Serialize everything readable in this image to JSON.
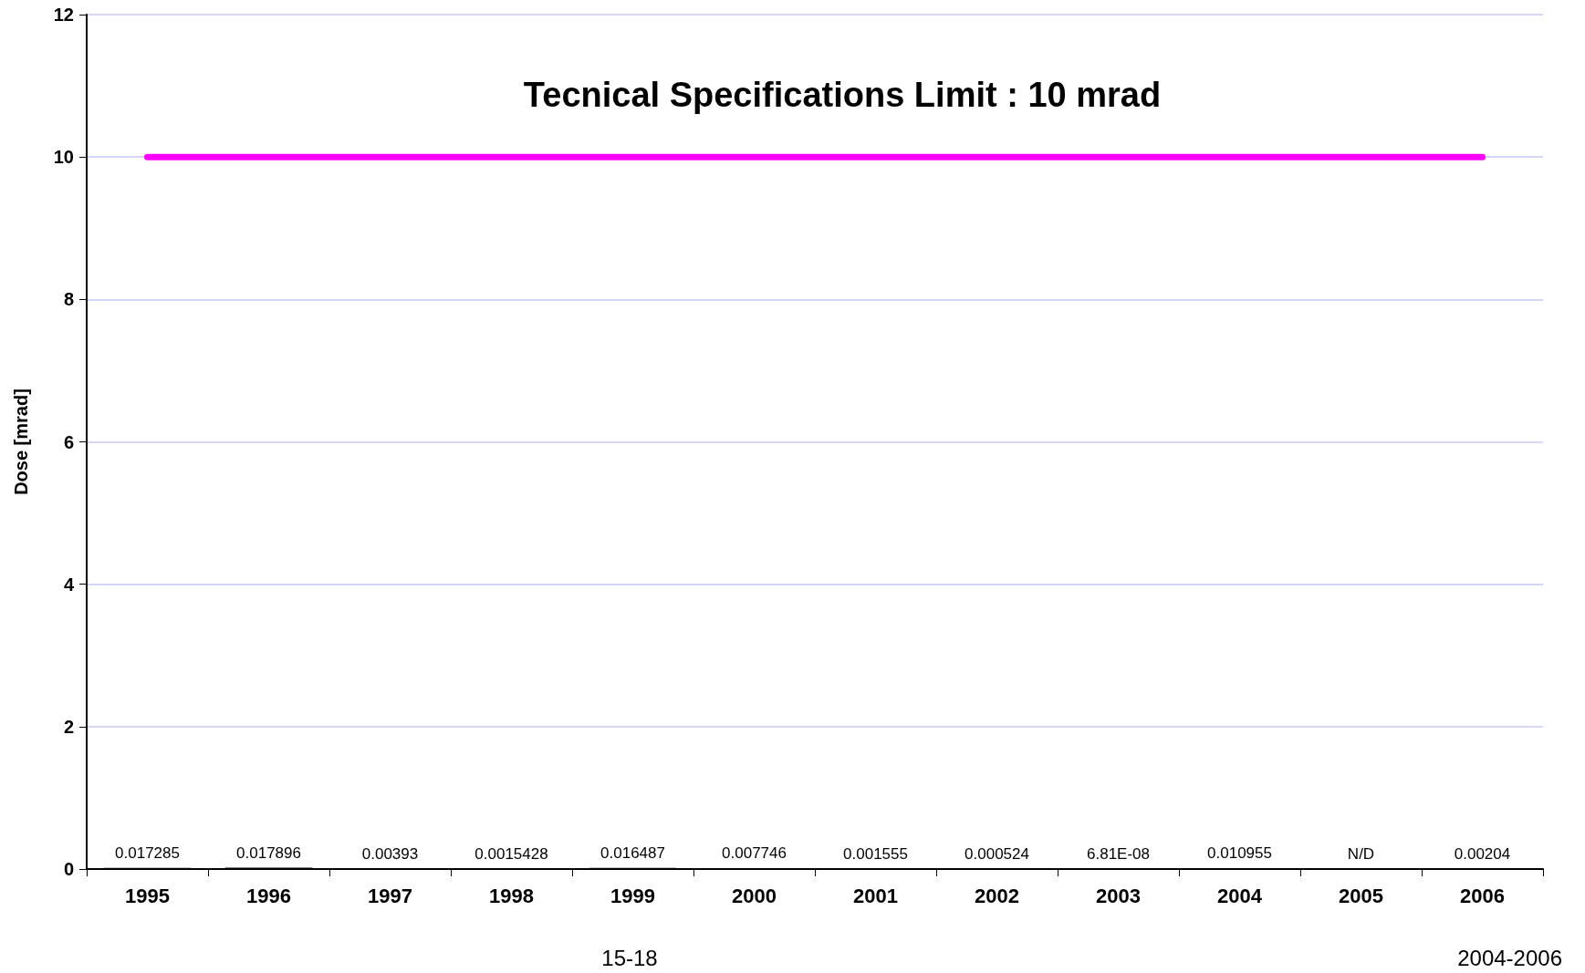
{
  "chart_data": {
    "type": "bar",
    "ylabel": "Dose [mrad]",
    "categories": [
      "1995",
      "1996",
      "1997",
      "1998",
      "1999",
      "2000",
      "2001",
      "2002",
      "2003",
      "2004",
      "2005",
      "2006"
    ],
    "series": [
      {
        "color": "#000000",
        "values": [
          0.017285,
          0.017896,
          0.00393,
          0.0015428,
          0.016487,
          0.007746,
          0.001555,
          0.000524,
          6.81e-08,
          0.010955,
          null,
          0.00204
        ],
        "value_labels": [
          "0.017285",
          "0.017896",
          "0.00393",
          "0.0015428",
          "0.016487",
          "0.007746",
          "0.001555",
          "0.000524",
          "6.81E-08",
          "0.010955",
          "N/D",
          "0.00204"
        ]
      },
      {
        "type": "line",
        "color": "#ff00ff",
        "values": [
          10,
          10,
          10,
          10,
          10,
          10,
          10,
          10,
          10,
          10,
          10,
          10
        ],
        "marker": "none"
      }
    ],
    "annotations": [
      {
        "text": "Tecnical Specifications Limit : 10 mrad",
        "y": 10
      },
      "15-18",
      "2004-2006"
    ],
    "ylim": [
      0,
      12
    ],
    "yticks": [
      0,
      2,
      4,
      6,
      8,
      10,
      12
    ],
    "grid": "y"
  }
}
